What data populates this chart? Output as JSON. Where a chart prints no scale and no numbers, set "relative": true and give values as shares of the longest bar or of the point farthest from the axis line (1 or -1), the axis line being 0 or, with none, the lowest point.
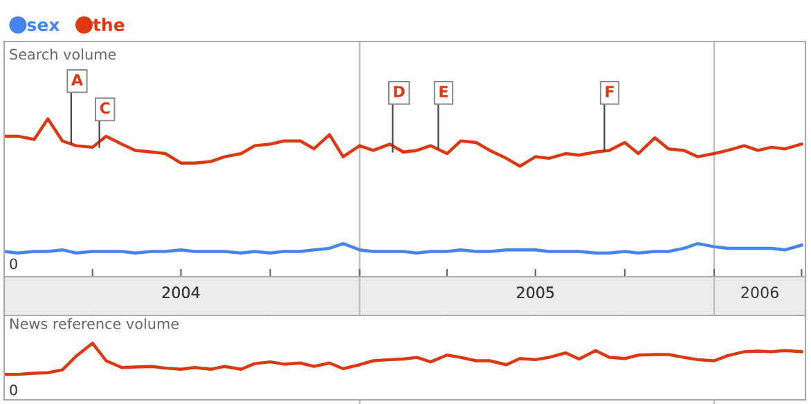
{
  "chart_data": [
    {
      "type": "line",
      "title": "Search volume",
      "relative": true,
      "tick_labels": "x",
      "legend": "top left",
      "x": [
        "2004-01-01",
        "2004-01-15",
        "2004-02-01",
        "2004-02-15",
        "2004-03-01",
        "2004-03-15",
        "2004-04-01",
        "2004-04-15",
        "2004-05-01",
        "2004-05-15",
        "2004-06-01",
        "2004-06-15",
        "2004-07-01",
        "2004-07-15",
        "2004-08-01",
        "2004-08-15",
        "2004-09-01",
        "2004-09-15",
        "2004-10-01",
        "2004-10-15",
        "2004-11-01",
        "2004-11-15",
        "2004-12-01",
        "2004-12-15",
        "2005-01-01",
        "2005-01-15",
        "2005-02-01",
        "2005-02-15",
        "2005-03-01",
        "2005-03-15",
        "2005-04-01",
        "2005-04-15",
        "2005-05-01",
        "2005-05-15",
        "2005-06-01",
        "2005-06-15",
        "2005-07-01",
        "2005-07-15",
        "2005-08-01",
        "2005-08-15",
        "2005-09-01",
        "2005-09-15",
        "2005-10-01",
        "2005-10-15",
        "2005-11-01",
        "2005-11-15",
        "2005-12-01",
        "2005-12-15",
        "2006-01-01",
        "2006-01-15",
        "2006-02-01",
        "2006-02-15",
        "2006-03-01",
        "2006-03-15",
        "2006-04-01"
      ],
      "xlim": [
        "2004-01-01",
        "2006-04-05"
      ],
      "xticks": [
        {
          "value": "2004-04-01",
          "label": null
        },
        {
          "value": "2004-07-01",
          "label": null
        },
        {
          "value": "2004-10-01",
          "label": null
        },
        {
          "value": "2005-01-01",
          "label": null
        },
        {
          "value": "2005-04-01",
          "label": null
        },
        {
          "value": "2005-07-01",
          "label": null
        },
        {
          "value": "2005-10-01",
          "label": null
        },
        {
          "value": "2006-01-01",
          "label": null
        },
        {
          "value": "2006-04-01",
          "label": null
        },
        {
          "value": "2004-07-01",
          "label": "2004"
        },
        {
          "value": "2005-07-01",
          "label": "2005"
        },
        {
          "value": "2006-02-17",
          "label": "2006"
        }
      ],
      "ref_lines": [
        {
          "axis": "x",
          "value": "2005-01-01",
          "label": null,
          "color": "#bbbbbb"
        },
        {
          "axis": "x",
          "value": "2006-01-01",
          "label": null,
          "color": "#bbbbbb"
        }
      ],
      "series": [
        {
          "name": "sex",
          "color": "#4684ee",
          "values": [
            0.16,
            0.15,
            0.16,
            0.16,
            0.17,
            0.15,
            0.16,
            0.16,
            0.16,
            0.15,
            0.16,
            0.16,
            0.17,
            0.16,
            0.16,
            0.16,
            0.15,
            0.16,
            0.15,
            0.16,
            0.16,
            0.17,
            0.18,
            0.21,
            0.17,
            0.16,
            0.16,
            0.16,
            0.15,
            0.16,
            0.16,
            0.17,
            0.16,
            0.16,
            0.17,
            0.17,
            0.17,
            0.16,
            0.16,
            0.16,
            0.15,
            0.15,
            0.16,
            0.15,
            0.16,
            0.16,
            0.18,
            0.21,
            0.19,
            0.18,
            0.18,
            0.18,
            0.18,
            0.17,
            0.2
          ]
        },
        {
          "name": "the",
          "color": "#dc3912",
          "values": [
            0.89,
            0.89,
            0.87,
            1.0,
            0.86,
            0.83,
            0.82,
            0.89,
            0.84,
            0.8,
            0.79,
            0.78,
            0.72,
            0.72,
            0.73,
            0.76,
            0.78,
            0.83,
            0.84,
            0.86,
            0.86,
            0.81,
            0.9,
            0.76,
            0.83,
            0.8,
            0.84,
            0.79,
            0.8,
            0.83,
            0.78,
            0.86,
            0.85,
            0.8,
            0.75,
            0.7,
            0.76,
            0.75,
            0.78,
            0.77,
            0.79,
            0.8,
            0.85,
            0.78,
            0.88,
            0.81,
            0.8,
            0.76,
            0.78,
            0.8,
            0.83,
            0.8,
            0.82,
            0.81,
            0.84
          ]
        }
      ],
      "annotations": [
        {
          "text": "A",
          "x": "2004-03-10",
          "y": 0.84
        },
        {
          "text": "C",
          "x": "2004-04-08",
          "y": 0.82
        },
        {
          "text": "D",
          "x": "2005-02-04",
          "y": 0.79
        },
        {
          "text": "E",
          "x": "2005-03-23",
          "y": 0.81
        },
        {
          "text": "F",
          "x": "2005-09-10",
          "y": 0.8
        },
        "0"
      ]
    },
    {
      "type": "line",
      "title": "News reference volume",
      "relative": true,
      "tick_labels": false,
      "x": [
        "2004-01-01",
        "2004-01-15",
        "2004-02-01",
        "2004-02-15",
        "2004-03-01",
        "2004-03-15",
        "2004-04-01",
        "2004-04-15",
        "2004-05-01",
        "2004-05-15",
        "2004-06-01",
        "2004-06-15",
        "2004-07-01",
        "2004-07-15",
        "2004-08-01",
        "2004-08-15",
        "2004-09-01",
        "2004-09-15",
        "2004-10-01",
        "2004-10-15",
        "2004-11-01",
        "2004-11-15",
        "2004-12-01",
        "2004-12-15",
        "2005-01-01",
        "2005-01-15",
        "2005-02-01",
        "2005-02-15",
        "2005-03-01",
        "2005-03-15",
        "2005-04-01",
        "2005-04-15",
        "2005-05-01",
        "2005-05-15",
        "2005-06-01",
        "2005-06-15",
        "2005-07-01",
        "2005-07-15",
        "2005-08-01",
        "2005-08-15",
        "2005-09-01",
        "2005-09-15",
        "2005-10-01",
        "2005-10-15",
        "2005-11-01",
        "2005-11-15",
        "2005-12-01",
        "2005-12-15",
        "2006-01-01",
        "2006-01-15",
        "2006-02-01",
        "2006-02-15",
        "2006-03-01",
        "2006-03-15",
        "2006-04-01"
      ],
      "xlim": [
        "2004-01-01",
        "2006-04-05"
      ],
      "series": [
        {
          "color": "#dc3912",
          "values": [
            0.45,
            0.45,
            0.47,
            0.48,
            0.53,
            0.77,
            1.0,
            0.69,
            0.57,
            0.58,
            0.59,
            0.56,
            0.54,
            0.57,
            0.54,
            0.59,
            0.54,
            0.64,
            0.67,
            0.63,
            0.65,
            0.59,
            0.65,
            0.55,
            0.62,
            0.69,
            0.71,
            0.72,
            0.75,
            0.67,
            0.79,
            0.75,
            0.69,
            0.69,
            0.62,
            0.73,
            0.71,
            0.75,
            0.83,
            0.72,
            0.87,
            0.75,
            0.73,
            0.79,
            0.8,
            0.8,
            0.75,
            0.71,
            0.69,
            0.78,
            0.85,
            0.86,
            0.85,
            0.87,
            0.85
          ]
        }
      ],
      "annotations": [
        "0"
      ]
    }
  ]
}
